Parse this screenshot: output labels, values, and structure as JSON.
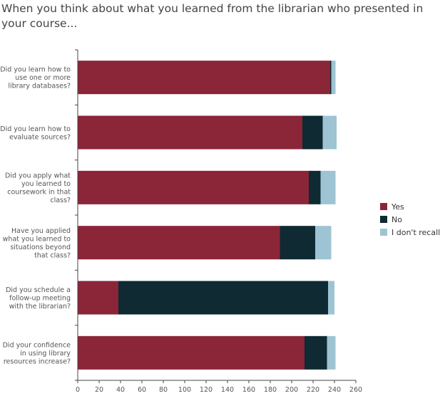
{
  "chart_data": {
    "type": "bar",
    "orientation": "horizontal",
    "stacked": true,
    "title": "When you think about what you learned from the librarian who presented in your course...",
    "categories": [
      "Did you learn how to use one or more library databases?",
      "Did you learn how to evaluate sources?",
      "Did you apply what you learned to coursework in that class?",
      "Have you applied what you learned to situations beyond that class?",
      "Did you schedule a follow-up meeting with the librarian?",
      "Did your confidence in using library resources increase?"
    ],
    "category_lines": [
      [
        "Did you learn how to",
        "use one or more",
        "library databases?"
      ],
      [
        "Did you learn how to",
        "evaluate sources?"
      ],
      [
        "Did you apply what",
        "you learned to",
        "coursework in that",
        "class?"
      ],
      [
        "Have you applied",
        "what you learned to",
        "situations beyond",
        "that class?"
      ],
      [
        "Did you schedule a",
        "follow-up meeting",
        "with the librarian?"
      ],
      [
        "Did your confidence",
        "in using library",
        "resources increase?"
      ]
    ],
    "series": [
      {
        "name": "Yes",
        "color": "#8b2538",
        "values": [
          236,
          210,
          216,
          189,
          38,
          212
        ]
      },
      {
        "name": "No",
        "color": "#0f2a33",
        "values": [
          1,
          19,
          11,
          33,
          196,
          21
        ]
      },
      {
        "name": "I don't recall",
        "color": "#9ec3d3",
        "values": [
          4,
          13,
          14,
          15,
          6,
          8
        ]
      }
    ],
    "xlim": [
      0,
      260
    ],
    "xticks": [
      0,
      20,
      40,
      60,
      80,
      100,
      120,
      140,
      160,
      180,
      200,
      220,
      240,
      260
    ],
    "xlabel": "",
    "ylabel": "",
    "legend_position": "right",
    "grid": false
  }
}
